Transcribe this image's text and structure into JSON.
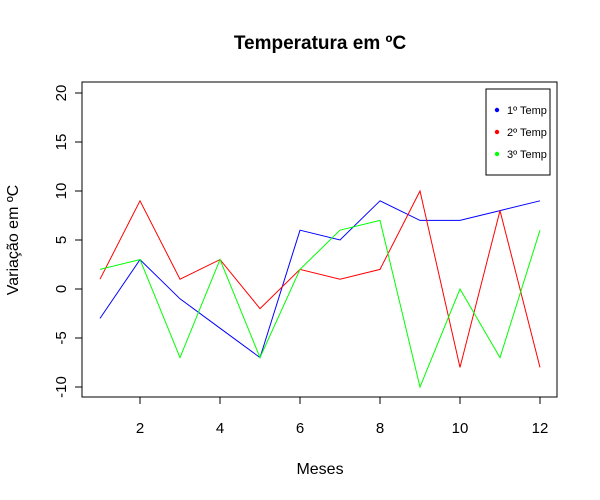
{
  "chart_data": {
    "type": "line",
    "title": "Temperatura em ºC",
    "xlabel": "Meses",
    "ylabel": "Variação em ºC",
    "x": [
      1,
      2,
      3,
      4,
      5,
      6,
      7,
      8,
      9,
      10,
      11,
      12
    ],
    "xlim": [
      1,
      12
    ],
    "ylim": [
      -10,
      20
    ],
    "xticks": [
      2,
      4,
      6,
      8,
      10,
      12
    ],
    "yticks": [
      -10,
      -5,
      0,
      5,
      10,
      15,
      20
    ],
    "grid": false,
    "legend_position": "top-right",
    "series": [
      {
        "name": "1º Temp",
        "color": "#0000ff",
        "values": [
          -3,
          3,
          -1,
          -4,
          -7,
          6,
          5,
          9,
          7,
          7,
          8,
          9
        ]
      },
      {
        "name": "2º Temp",
        "color": "#ff0000",
        "values": [
          1,
          9,
          1,
          3,
          -2,
          2,
          1,
          2,
          10,
          -8,
          8,
          -8
        ]
      },
      {
        "name": "3º Temp",
        "color": "#00ff00",
        "values": [
          2,
          3,
          -7,
          3,
          -7,
          2,
          6,
          7,
          -10,
          0,
          -7,
          6
        ]
      }
    ]
  }
}
